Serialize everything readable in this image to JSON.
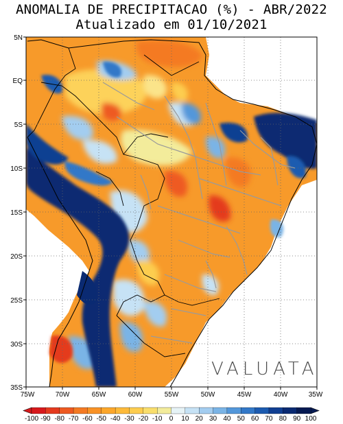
{
  "title_line1": "ANOMALIA DE PRECIPITACAO (%) - ABR/2022",
  "title_line2": "Atualizado em 01/10/2021",
  "watermark": "VALUATA",
  "lat_labels": [
    "5N",
    "EQ",
    "5S",
    "10S",
    "15S",
    "20S",
    "25S",
    "30S",
    "35S"
  ],
  "lon_labels": [
    "75W",
    "70W",
    "65W",
    "60W",
    "55W",
    "50W",
    "45W",
    "40W",
    "35W"
  ],
  "colorbar": {
    "labels": [
      "-100",
      "-90",
      "-80",
      "-70",
      "-60",
      "-50",
      "-40",
      "-30",
      "-20",
      "-10",
      "0",
      "10",
      "20",
      "30",
      "40",
      "50",
      "60",
      "70",
      "80",
      "90",
      "100"
    ],
    "colors": [
      "#d7191c",
      "#e43a1e",
      "#ee5a21",
      "#f47a23",
      "#f99226",
      "#fca72b",
      "#fdba3a",
      "#fdcd4f",
      "#f9de6c",
      "#f3ec9b",
      "#e6f3f6",
      "#c6e2f5",
      "#a3cdf0",
      "#7ab4e6",
      "#5397da",
      "#3278c8",
      "#1c5bb0",
      "#113f92",
      "#0a2a72",
      "#061a52"
    ]
  }
}
